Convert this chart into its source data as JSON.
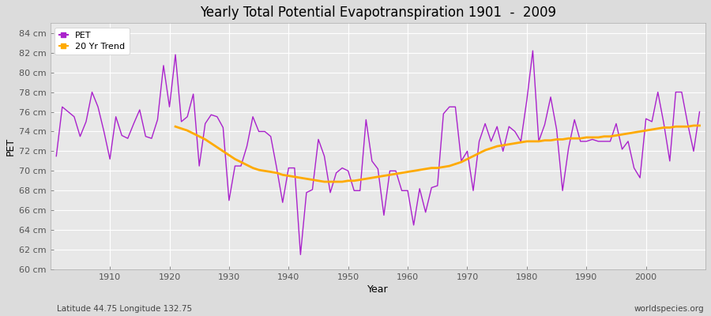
{
  "title": "Yearly Total Potential Evapotranspiration 1901  -  2009",
  "xlabel": "Year",
  "ylabel": "PET",
  "subtitle_left": "Latitude 44.75 Longitude 132.75",
  "subtitle_right": "worldspecies.org",
  "pet_color": "#aa22cc",
  "trend_color": "#ffaa00",
  "bg_color": "#dcdcdc",
  "plot_bg_color": "#e8e8e8",
  "grid_color": "#ffffff",
  "ylim": [
    60,
    85
  ],
  "xlim": [
    1900,
    2010
  ],
  "ytick_labels": [
    "60 cm",
    "62 cm",
    "64 cm",
    "66 cm",
    "68 cm",
    "70 cm",
    "72 cm",
    "74 cm",
    "76 cm",
    "78 cm",
    "80 cm",
    "82 cm",
    "84 cm"
  ],
  "ytick_values": [
    60,
    62,
    64,
    66,
    68,
    70,
    72,
    74,
    76,
    78,
    80,
    82,
    84
  ],
  "xtick_values": [
    1910,
    1920,
    1930,
    1940,
    1950,
    1960,
    1970,
    1980,
    1990,
    2000
  ],
  "years": [
    1901,
    1902,
    1903,
    1904,
    1905,
    1906,
    1907,
    1908,
    1909,
    1910,
    1911,
    1912,
    1913,
    1914,
    1915,
    1916,
    1917,
    1918,
    1919,
    1920,
    1921,
    1922,
    1923,
    1924,
    1925,
    1926,
    1927,
    1928,
    1929,
    1930,
    1931,
    1932,
    1933,
    1934,
    1935,
    1936,
    1937,
    1938,
    1939,
    1940,
    1941,
    1942,
    1943,
    1944,
    1945,
    1946,
    1947,
    1948,
    1949,
    1950,
    1951,
    1952,
    1953,
    1954,
    1955,
    1956,
    1957,
    1958,
    1959,
    1960,
    1961,
    1962,
    1963,
    1964,
    1965,
    1966,
    1967,
    1968,
    1969,
    1970,
    1971,
    1972,
    1973,
    1974,
    1975,
    1976,
    1977,
    1978,
    1979,
    1980,
    1981,
    1982,
    1983,
    1984,
    1985,
    1986,
    1987,
    1988,
    1989,
    1990,
    1991,
    1992,
    1993,
    1994,
    1995,
    1996,
    1997,
    1998,
    1999,
    2000,
    2001,
    2002,
    2003,
    2004,
    2005,
    2006,
    2007,
    2008,
    2009
  ],
  "pet_values": [
    71.5,
    76.5,
    76.0,
    75.5,
    73.5,
    75.0,
    78.0,
    76.5,
    74.0,
    71.2,
    75.5,
    73.6,
    73.3,
    74.8,
    76.2,
    73.5,
    73.3,
    75.2,
    80.7,
    76.5,
    81.8,
    75.0,
    75.5,
    77.8,
    70.5,
    74.8,
    75.7,
    75.5,
    74.4,
    67.0,
    70.5,
    70.5,
    72.5,
    75.5,
    74.0,
    74.0,
    73.5,
    70.3,
    66.8,
    70.3,
    70.3,
    61.5,
    67.8,
    68.1,
    73.2,
    71.5,
    67.8,
    69.8,
    70.3,
    70.0,
    68.0,
    68.0,
    75.2,
    71.0,
    70.2,
    65.5,
    70.0,
    70.0,
    68.0,
    68.0,
    64.5,
    68.2,
    65.8,
    68.3,
    68.5,
    75.8,
    76.5,
    76.5,
    71.0,
    72.0,
    68.0,
    73.0,
    74.8,
    73.0,
    74.5,
    72.0,
    74.5,
    74.0,
    73.0,
    77.2,
    82.2,
    73.0,
    74.7,
    77.5,
    74.2,
    68.0,
    72.3,
    75.2,
    73.0,
    73.0,
    73.2,
    73.0,
    73.0,
    73.0,
    74.8,
    72.2,
    73.0,
    70.3,
    69.3,
    75.3,
    75.0,
    78.0,
    74.8,
    71.0,
    78.0,
    78.0,
    74.8,
    72.0,
    76.0
  ],
  "trend_start_year": 1921,
  "trend_values_by_year": {
    "1921": 74.5,
    "1922": 74.3,
    "1923": 74.1,
    "1924": 73.8,
    "1925": 73.5,
    "1926": 73.2,
    "1927": 72.8,
    "1928": 72.4,
    "1929": 72.0,
    "1930": 71.6,
    "1931": 71.2,
    "1932": 70.9,
    "1933": 70.6,
    "1934": 70.3,
    "1935": 70.1,
    "1936": 70.0,
    "1937": 69.9,
    "1938": 69.8,
    "1939": 69.6,
    "1940": 69.5,
    "1941": 69.4,
    "1942": 69.3,
    "1943": 69.2,
    "1944": 69.1,
    "1945": 69.0,
    "1946": 68.9,
    "1947": 68.9,
    "1948": 68.9,
    "1949": 68.9,
    "1950": 69.0,
    "1951": 69.0,
    "1952": 69.1,
    "1953": 69.2,
    "1954": 69.3,
    "1955": 69.4,
    "1956": 69.5,
    "1957": 69.6,
    "1958": 69.7,
    "1959": 69.8,
    "1960": 69.9,
    "1961": 70.0,
    "1962": 70.1,
    "1963": 70.2,
    "1964": 70.3,
    "1965": 70.3,
    "1966": 70.4,
    "1967": 70.5,
    "1968": 70.7,
    "1969": 70.9,
    "1970": 71.2,
    "1971": 71.5,
    "1972": 71.8,
    "1973": 72.1,
    "1974": 72.3,
    "1975": 72.5,
    "1976": 72.6,
    "1977": 72.7,
    "1978": 72.8,
    "1979": 72.9,
    "1980": 73.0,
    "1981": 73.0,
    "1982": 73.0,
    "1983": 73.1,
    "1984": 73.1,
    "1985": 73.2,
    "1986": 73.2,
    "1987": 73.3,
    "1988": 73.3,
    "1989": 73.3,
    "1990": 73.4,
    "1991": 73.4,
    "1992": 73.4,
    "1993": 73.5,
    "1994": 73.5,
    "1995": 73.6,
    "1996": 73.7,
    "1997": 73.8,
    "1998": 73.9,
    "1999": 74.0,
    "2000": 74.1,
    "2001": 74.2,
    "2002": 74.3,
    "2003": 74.4,
    "2004": 74.4,
    "2005": 74.5,
    "2006": 74.5,
    "2007": 74.5,
    "2008": 74.6,
    "2009": 74.6
  }
}
